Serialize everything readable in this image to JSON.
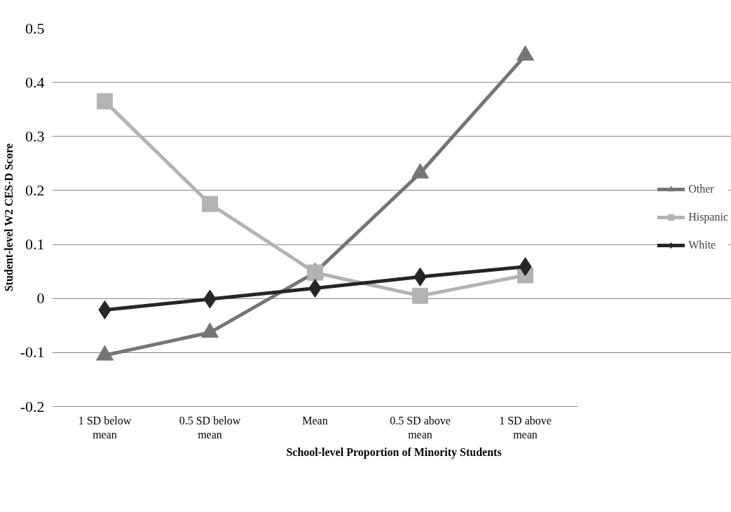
{
  "chart_data": {
    "type": "line",
    "xlabel": "School-level Proportion of Minority Students",
    "ylabel": "Student-level W2 CES-D Score",
    "categories": [
      "1 SD below mean",
      "0.5 SD below mean",
      "Mean",
      "0.5 SD above mean",
      "1 SD above mean"
    ],
    "series": [
      {
        "name": "Other",
        "color": "#787474",
        "marker": "triangle",
        "values": [
          -0.105,
          -0.063,
          0.048,
          0.232,
          0.45
        ]
      },
      {
        "name": "Hispanic",
        "color": "#b3b3b3",
        "marker": "square",
        "values": [
          0.365,
          0.175,
          0.048,
          0.005,
          0.043
        ]
      },
      {
        "name": "White",
        "color": "#262626",
        "marker": "diamond",
        "values": [
          -0.021,
          -0.001,
          0.019,
          0.04,
          0.059
        ]
      }
    ],
    "ylim": [
      -0.2,
      0.5
    ],
    "yticks": [
      -0.2,
      -0.1,
      0,
      0.1,
      0.2,
      0.3,
      0.4,
      0.5
    ],
    "grid": "y",
    "legend": "right"
  }
}
